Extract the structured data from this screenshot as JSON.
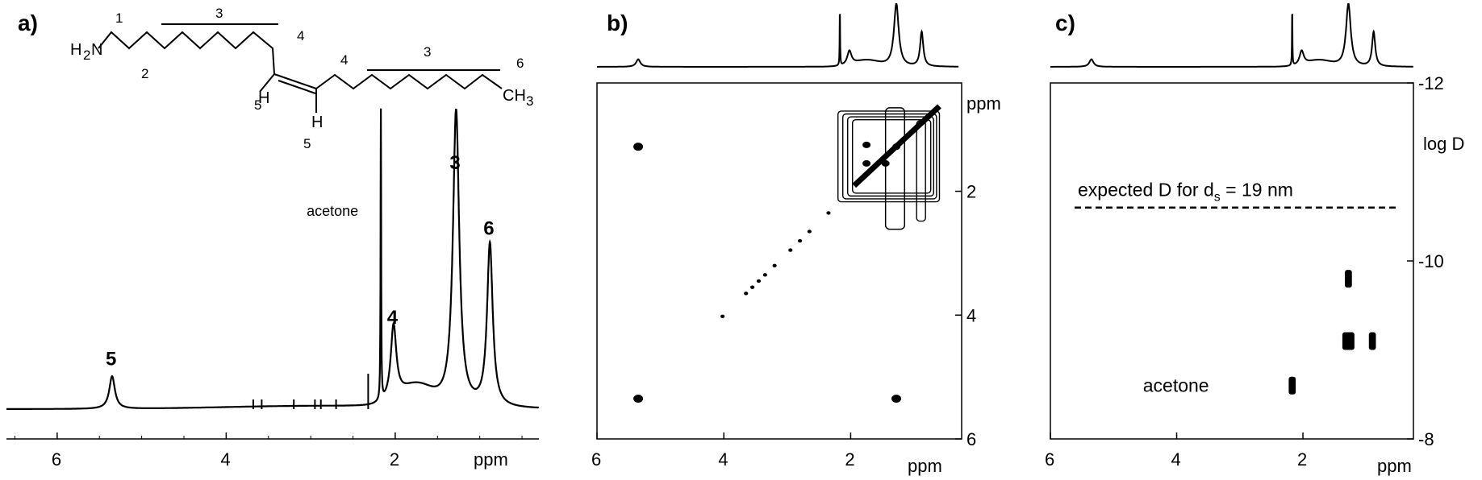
{
  "chart_data": [
    {
      "type": "line",
      "panel": "a)",
      "xlabel": "ppm",
      "x_reversed": true,
      "xlim": [
        6.6,
        0.3
      ],
      "x_ticks": [
        6,
        4,
        2
      ],
      "structure": {
        "atoms": [
          "H",
          "N",
          "2",
          "H",
          "H",
          "CH",
          "3"
        ],
        "position_numbers": [
          "1",
          "2",
          "3",
          "4",
          "4",
          "3",
          "6",
          "5",
          "5"
        ]
      },
      "peaks": [
        {
          "label": "5",
          "ppm": 5.35,
          "relative_height": 0.11
        },
        {
          "label": "4",
          "ppm": 2.02,
          "relative_height": 0.25
        },
        {
          "label": "3",
          "ppm": 1.28,
          "relative_height": 1.0
        },
        {
          "label": "6",
          "ppm": 0.88,
          "relative_height": 0.55
        },
        {
          "label": "acetone",
          "ppm": 2.17,
          "relative_height": 0.98
        }
      ],
      "grid": false
    },
    {
      "type": "scatter",
      "panel": "b)",
      "xlabel": "ppm",
      "ylabel": "ppm",
      "x_reversed": true,
      "xlim": [
        6.0,
        0.25
      ],
      "ylim": [
        0.25,
        6.0
      ],
      "x_ticks": [
        6,
        4,
        2
      ],
      "y_ticks": [
        2,
        4,
        6
      ],
      "cross_peaks": [
        {
          "x": 5.35,
          "y": 1.28
        },
        {
          "x": 5.35,
          "y": 5.35
        },
        {
          "x": 1.28,
          "y": 5.35
        }
      ],
      "diagonal_points": [
        {
          "x": 4.02,
          "y": 4.02
        },
        {
          "x": 3.65,
          "y": 3.65
        },
        {
          "x": 3.55,
          "y": 3.55
        },
        {
          "x": 3.45,
          "y": 3.45
        },
        {
          "x": 3.35,
          "y": 3.35
        },
        {
          "x": 3.2,
          "y": 3.2
        },
        {
          "x": 2.95,
          "y": 2.95
        },
        {
          "x": 2.8,
          "y": 2.8
        },
        {
          "x": 2.65,
          "y": 2.65
        },
        {
          "x": 2.35,
          "y": 2.35
        }
      ],
      "cluster": {
        "x_range": [
          2.2,
          0.6
        ],
        "y_range": [
          0.6,
          2.3
        ]
      },
      "grid": false
    },
    {
      "type": "scatter",
      "panel": "c)",
      "xlabel": "ppm",
      "ylabel": "log D",
      "x_reversed": true,
      "xlim": [
        6.0,
        0.25
      ],
      "ylim": [
        -12,
        -8
      ],
      "y_ticks": [
        -12,
        -10,
        -8
      ],
      "x_ticks": [
        6,
        4,
        2
      ],
      "reference_line": {
        "label_prefix": "expected D for d",
        "label_sub": "s",
        "label_suffix": " = 19 nm",
        "log_D": -10.6
      },
      "points": [
        {
          "x": 1.28,
          "y": -9.8,
          "w": 0.03
        },
        {
          "x": 1.28,
          "y": -9.1,
          "w": 0.07
        },
        {
          "x": 0.9,
          "y": -9.1,
          "w": 0.03
        },
        {
          "x": 2.17,
          "y": -8.6,
          "w": 0.03,
          "label": "acetone"
        }
      ],
      "grid": false
    }
  ]
}
